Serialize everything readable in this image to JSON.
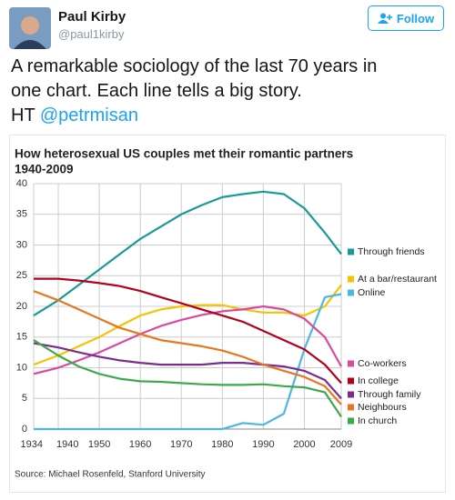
{
  "tweet": {
    "name": "Paul Kirby",
    "handle": "@paul1kirby",
    "follow": "Follow",
    "lines": [
      "A remarkable sociology of the last 70 years in",
      "one chart. Each line tells a big story."
    ],
    "ht": "HT",
    "mention": "@petrmisan"
  },
  "chart_data": {
    "type": "line",
    "title": [
      "How heterosexual US couples met their romantic partners",
      "1940-2009"
    ],
    "source": "Source: Michael Rosenfeld, Stanford University",
    "x": [
      1934,
      1940,
      1945,
      1950,
      1955,
      1960,
      1965,
      1970,
      1975,
      1980,
      1985,
      1990,
      1995,
      2000,
      2005,
      2009
    ],
    "xlim": [
      1934,
      2009
    ],
    "xticks": [
      1934,
      1940,
      1950,
      1960,
      1970,
      1980,
      1990,
      2000,
      2009
    ],
    "ylim": [
      0,
      40
    ],
    "yticks": [
      0,
      5,
      10,
      15,
      20,
      25,
      30,
      35,
      40
    ],
    "grid": true,
    "series": [
      {
        "name": "Through friends",
        "color": "#1a9a96",
        "values": [
          18.5,
          21,
          23.5,
          26,
          28.5,
          31,
          33,
          35,
          36.5,
          37.8,
          38.3,
          38.7,
          38.3,
          36,
          32,
          28.5
        ]
      },
      {
        "name": "At a bar/restaurant",
        "color": "#f5c400",
        "values": [
          10.5,
          12,
          13.5,
          15,
          16.8,
          18.5,
          19.5,
          20,
          20.2,
          20.2,
          19.5,
          19,
          19,
          18.5,
          20,
          23.5
        ]
      },
      {
        "name": "Online",
        "color": "#4ab8e0",
        "values": [
          0,
          0,
          0,
          0,
          0,
          0,
          0,
          0,
          0,
          0,
          1,
          0.7,
          2.5,
          13,
          21.5,
          22
        ]
      },
      {
        "name": "Co-workers",
        "color": "#d94a9e",
        "values": [
          9,
          10,
          11.2,
          12.5,
          14,
          15.5,
          16.8,
          17.8,
          18.6,
          19.2,
          19.5,
          20,
          19.5,
          18,
          15,
          10.2
        ]
      },
      {
        "name": "In college",
        "color": "#b3001b",
        "values": [
          24.5,
          24.5,
          24.2,
          23.8,
          23.3,
          22.5,
          21.5,
          20.5,
          19.5,
          18.5,
          17.5,
          16,
          14.5,
          13,
          10.5,
          7.5
        ]
      },
      {
        "name": "Through family",
        "color": "#7b2d8e",
        "values": [
          14,
          13.3,
          12.5,
          11.8,
          11.2,
          10.8,
          10.5,
          10.5,
          10.5,
          10.8,
          10.8,
          10.5,
          10.2,
          9.5,
          8,
          5
        ]
      },
      {
        "name": "Neighbours",
        "color": "#e8761e",
        "values": [
          22.5,
          21,
          19.5,
          18,
          16.5,
          15.5,
          14.5,
          14,
          13.5,
          12.8,
          11.8,
          10.5,
          9.5,
          8.5,
          7,
          4
        ]
      },
      {
        "name": "In church",
        "color": "#3daa4a",
        "values": [
          14.5,
          12,
          10.2,
          9,
          8.2,
          7.8,
          7.7,
          7.5,
          7.3,
          7.2,
          7.2,
          7.3,
          7,
          6.8,
          6,
          2
        ]
      }
    ]
  }
}
